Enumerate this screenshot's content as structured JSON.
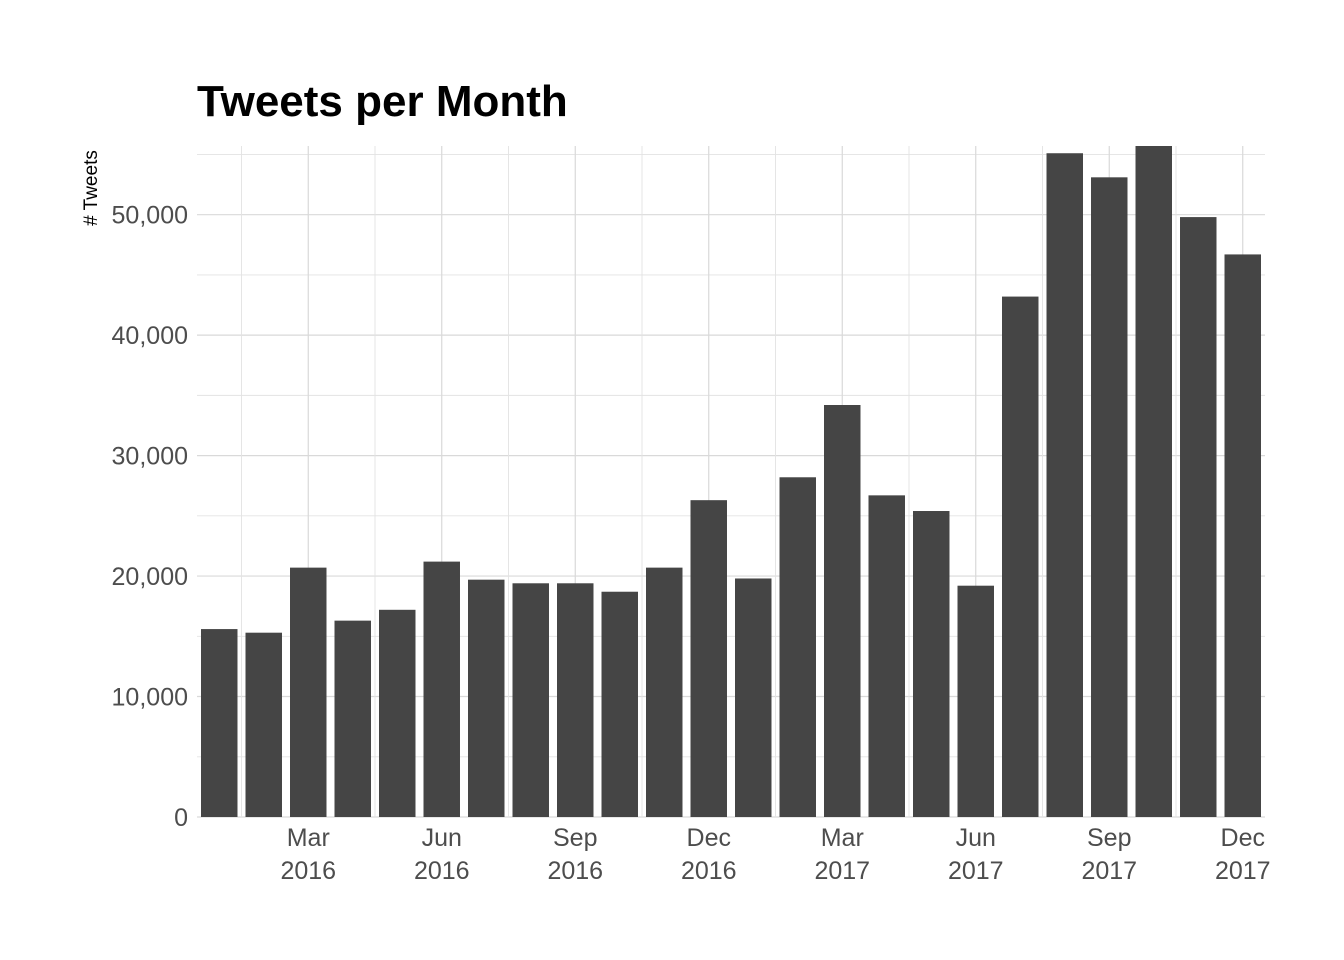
{
  "chart_data": {
    "type": "bar",
    "title": "Tweets per Month",
    "xlabel": "",
    "ylabel": "# Tweets",
    "categories": [
      "2016-01",
      "2016-02",
      "2016-03",
      "2016-04",
      "2016-05",
      "2016-06",
      "2016-07",
      "2016-08",
      "2016-09",
      "2016-10",
      "2016-11",
      "2016-12",
      "2017-01",
      "2017-02",
      "2017-03",
      "2017-04",
      "2017-05",
      "2017-06",
      "2017-07",
      "2017-08",
      "2017-09",
      "2017-10",
      "2017-11",
      "2017-12"
    ],
    "values": [
      15600,
      15300,
      20700,
      16300,
      17200,
      21200,
      19700,
      19400,
      19400,
      18700,
      20700,
      26300,
      19800,
      28200,
      34200,
      26700,
      25400,
      19200,
      43200,
      55100,
      53100,
      55700,
      49800,
      46700
    ],
    "ylim": [
      0,
      55700
    ],
    "yticks": [
      0,
      10000,
      20000,
      30000,
      40000,
      50000
    ],
    "ytick_labels": [
      "0",
      "10,000",
      "20,000",
      "30,000",
      "40,000",
      "50,000"
    ],
    "xticks": [
      {
        "month": "Mar",
        "year": "2016",
        "index": 2
      },
      {
        "month": "Jun",
        "year": "2016",
        "index": 5
      },
      {
        "month": "Sep",
        "year": "2016",
        "index": 8
      },
      {
        "month": "Dec",
        "year": "2016",
        "index": 11
      },
      {
        "month": "Mar",
        "year": "2017",
        "index": 14
      },
      {
        "month": "Jun",
        "year": "2017",
        "index": 17
      },
      {
        "month": "Sep",
        "year": "2017",
        "index": 20
      },
      {
        "month": "Dec",
        "year": "2017",
        "index": 23
      }
    ],
    "grid": true,
    "legend": "none",
    "bar_color": "#454545"
  }
}
